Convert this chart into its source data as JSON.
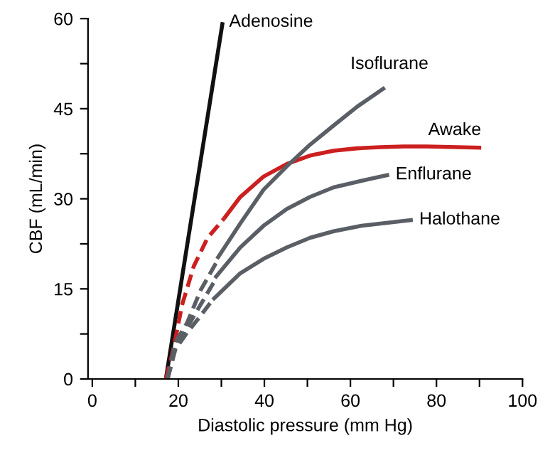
{
  "chart_data": {
    "type": "line",
    "xlabel": "Diastolic pressure (mm Hg)",
    "ylabel": "CBF (mL/min)",
    "xlim": [
      -1,
      100
    ],
    "ylim": [
      0,
      60
    ],
    "xticks": [
      0,
      {
        "value": 10,
        "label": null
      },
      20,
      {
        "value": 30,
        "label": null
      },
      40,
      {
        "value": 50,
        "label": null
      },
      60,
      {
        "value": 70,
        "label": null
      },
      80,
      {
        "value": 90,
        "label": null
      },
      100
    ],
    "yticks": [
      0,
      {
        "value": 7.5,
        "label": null
      },
      15,
      {
        "value": 22.5,
        "label": null
      },
      30,
      {
        "value": 37.5,
        "label": null
      },
      45,
      {
        "value": 52.5,
        "label": null
      },
      60
    ],
    "grid": false,
    "legend": false,
    "marker": "none",
    "series": [
      {
        "name": "Adenosine",
        "color": "#111111",
        "line_style": "solid",
        "x": [
          17.1,
          30.3
        ],
        "values": [
          0,
          59.4
        ]
      },
      {
        "color": "#cc1f1f",
        "line_style": "dashed",
        "x": [
          17.1,
          18.7,
          20.9,
          23.6,
          26.8,
          30.6
        ],
        "values": [
          0,
          4.5,
          12.4,
          18.8,
          23.5,
          26.7
        ]
      },
      {
        "name": "Awake",
        "color": "#cc1f1f",
        "line_style": "solid",
        "x": [
          30.6,
          34.4,
          39.8,
          45.2,
          50.6,
          56.1,
          61.5,
          66.9,
          72.3,
          77.7,
          90.4
        ],
        "values": [
          26.7,
          30.3,
          33.7,
          35.8,
          37.2,
          38.0,
          38.4,
          38.6,
          38.7,
          38.7,
          38.5
        ]
      },
      {
        "color": "#5a5f66",
        "line_style": "dashed",
        "x": [
          17.5,
          19.3,
          22.0,
          25.2,
          29.0
        ],
        "values": [
          0,
          6.1,
          9.3,
          14.8,
          19.6
        ]
      },
      {
        "name": "Isoflurane",
        "color": "#5a5f66",
        "line_style": "solid",
        "x": [
          29.0,
          34.4,
          39.8,
          45.2,
          50.6,
          56.1,
          61.5,
          68.0
        ],
        "values": [
          20.0,
          25.9,
          31.5,
          35.4,
          39.0,
          42.2,
          45.3,
          48.5
        ]
      },
      {
        "color": "#5a5f66",
        "line_style": "dashed",
        "x": [
          17.5,
          19.3,
          22.0,
          25.2,
          28.5
        ],
        "values": [
          0,
          5.3,
          8.5,
          12.4,
          16.4
        ]
      },
      {
        "name": "Enflurane",
        "color": "#5a5f66",
        "line_style": "solid",
        "x": [
          28.5,
          34.4,
          39.8,
          45.2,
          50.6,
          56.1,
          62.6,
          69.0
        ],
        "values": [
          16.8,
          21.9,
          25.5,
          28.3,
          30.3,
          31.9,
          33.0,
          34.0
        ]
      },
      {
        "color": "#5a5f66",
        "line_style": "dashed",
        "x": [
          17.5,
          19.3,
          22.0,
          24.7,
          28.0
        ],
        "values": [
          0,
          4.9,
          7.7,
          10.1,
          13.2
        ]
      },
      {
        "name": "Halothane",
        "color": "#5a5f66",
        "line_style": "solid",
        "x": [
          28.0,
          34.4,
          39.8,
          45.2,
          50.6,
          56.1,
          62.6,
          74.5
        ],
        "values": [
          13.2,
          17.6,
          20.0,
          21.9,
          23.5,
          24.6,
          25.5,
          26.5
        ]
      }
    ]
  }
}
